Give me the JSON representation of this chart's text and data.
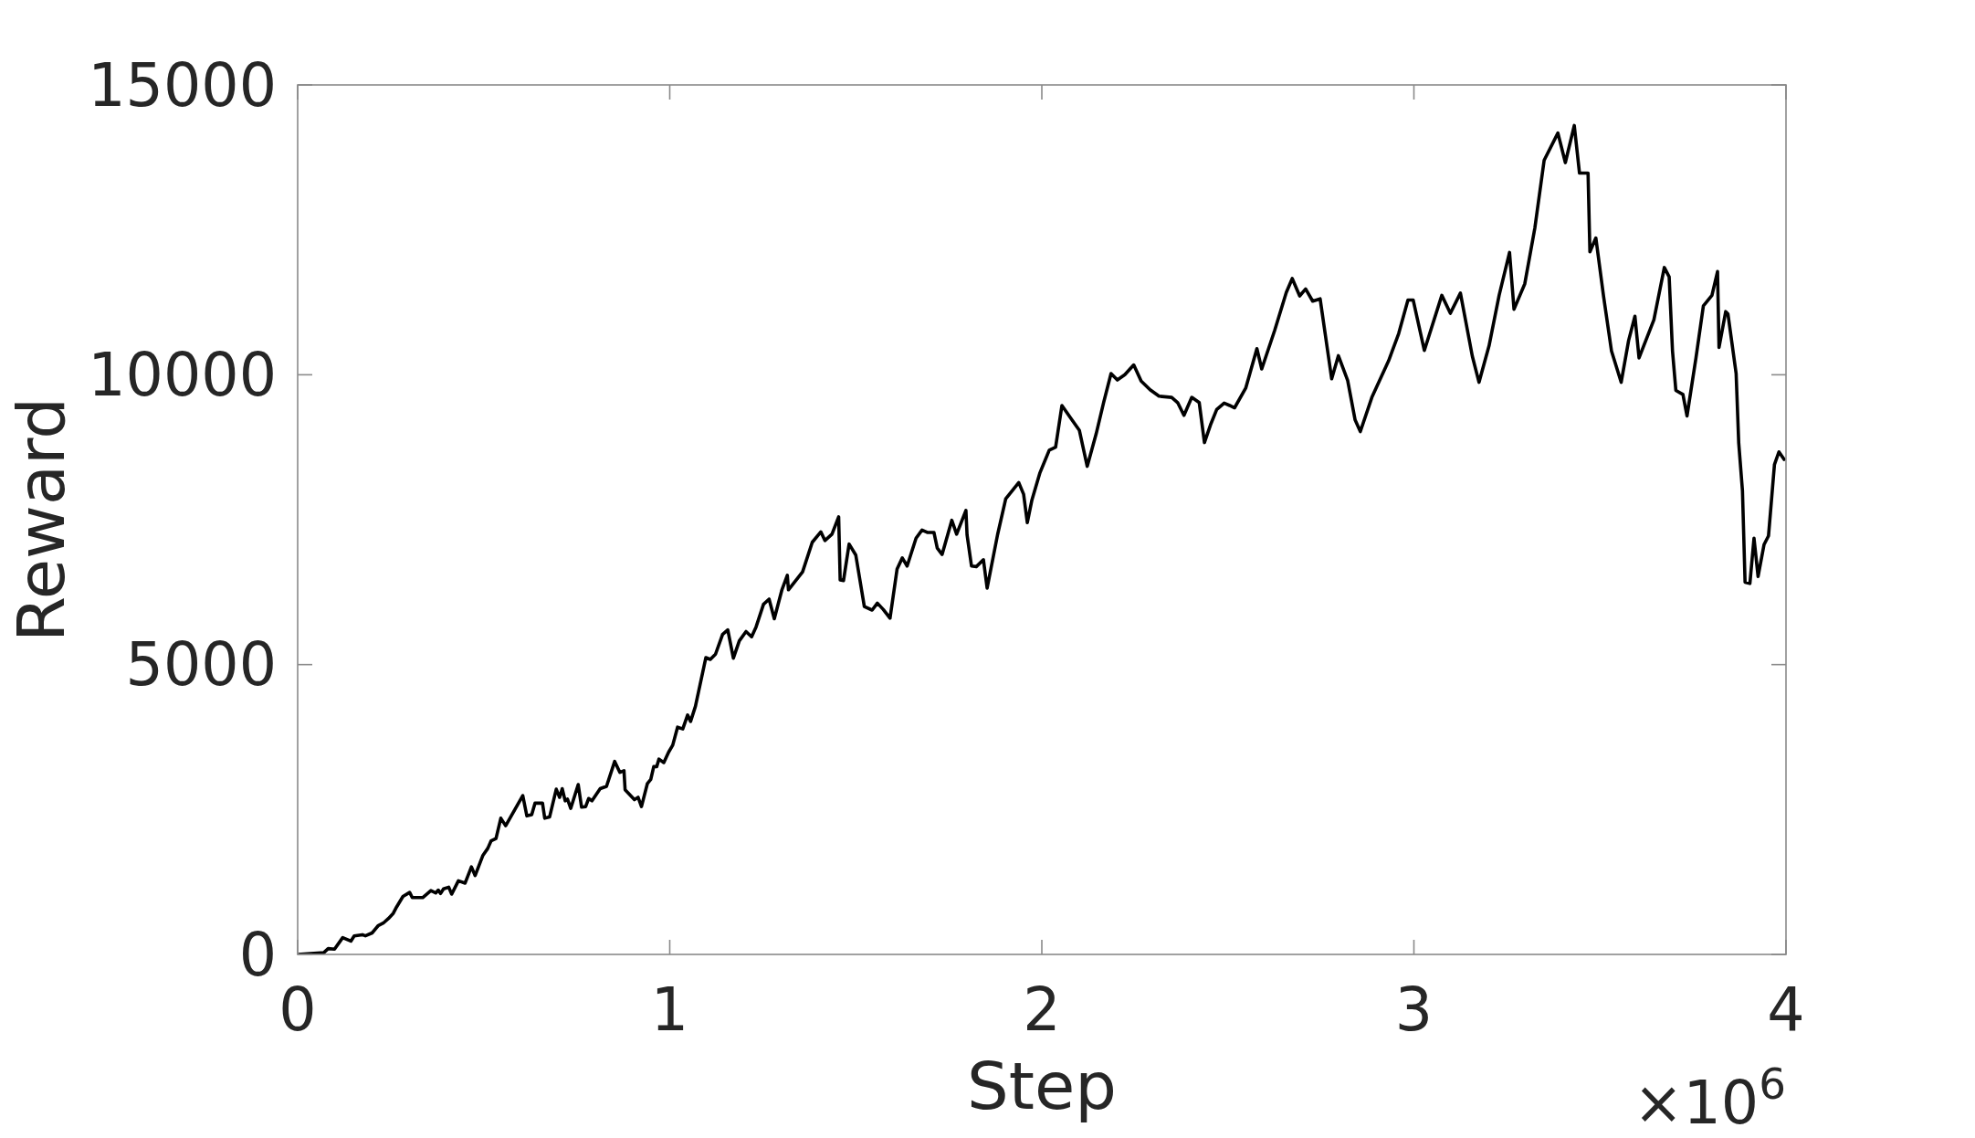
{
  "chart_data": {
    "type": "line",
    "xlabel": "Step",
    "ylabel": "Reward",
    "annotations": [
      "×10$^{6}$"
    ],
    "xlim": [
      0,
      4
    ],
    "ylim": [
      0,
      15000
    ],
    "xticks": [
      0,
      1,
      2,
      3,
      4
    ],
    "yticks": [
      0,
      5000,
      10000,
      15000
    ],
    "x": [
      0,
      0.07,
      0.082,
      0.099,
      0.121,
      0.143,
      0.152,
      0.174,
      0.182,
      0.2,
      0.217,
      0.23,
      0.244,
      0.257,
      0.266,
      0.283,
      0.301,
      0.308,
      0.336,
      0.358,
      0.371,
      0.378,
      0.384,
      0.392,
      0.406,
      0.414,
      0.432,
      0.45,
      0.467,
      0.477,
      0.498,
      0.511,
      0.52,
      0.533,
      0.546,
      0.559,
      0.59,
      0.605,
      0.616,
      0.629,
      0.638,
      0.658,
      0.664,
      0.677,
      0.695,
      0.704,
      0.711,
      0.719,
      0.725,
      0.734,
      0.754,
      0.763,
      0.774,
      0.782,
      0.791,
      0.813,
      0.83,
      0.852,
      0.866,
      0.877,
      0.88,
      0.905,
      0.915,
      0.924,
      0.94,
      0.949,
      0.957,
      0.965,
      0.971,
      0.984,
      0.997,
      1.008,
      1.021,
      1.035,
      1.048,
      1.056,
      1.069,
      1.097,
      1.109,
      1.123,
      1.142,
      1.156,
      1.171,
      1.187,
      1.205,
      1.22,
      1.232,
      1.252,
      1.267,
      1.281,
      1.301,
      1.316,
      1.319,
      1.357,
      1.383,
      1.406,
      1.417,
      1.436,
      1.454,
      1.458,
      1.467,
      1.482,
      1.5,
      1.523,
      1.544,
      1.558,
      1.574,
      1.592,
      1.611,
      1.625,
      1.638,
      1.662,
      1.678,
      1.692,
      1.71,
      1.719,
      1.732,
      1.758,
      1.771,
      1.796,
      1.799,
      1.811,
      1.824,
      1.843,
      1.853,
      1.881,
      1.903,
      1.938,
      1.951,
      1.961,
      1.973,
      1.995,
      2.02,
      2.037,
      2.054,
      2.078,
      2.101,
      2.122,
      2.146,
      2.166,
      2.186,
      2.203,
      2.223,
      2.247,
      2.267,
      2.291,
      2.315,
      2.349,
      2.365,
      2.382,
      2.403,
      2.423,
      2.437,
      2.453,
      2.47,
      2.49,
      2.505,
      2.518,
      2.548,
      2.578,
      2.591,
      2.626,
      2.657,
      2.673,
      2.693,
      2.709,
      2.728,
      2.748,
      2.779,
      2.797,
      2.822,
      2.842,
      2.856,
      2.887,
      2.932,
      2.959,
      2.984,
      2.998,
      3.028,
      3.075,
      3.098,
      3.125,
      3.157,
      3.175,
      3.202,
      3.229,
      3.257,
      3.269,
      3.298,
      3.325,
      3.35,
      3.387,
      3.407,
      3.431,
      3.445,
      3.468,
      3.473,
      3.489,
      3.51,
      3.531,
      3.557,
      3.577,
      3.594,
      3.605,
      3.645,
      3.673,
      3.686,
      3.695,
      3.704,
      3.723,
      3.734,
      3.758,
      3.778,
      3.801,
      3.816,
      3.82,
      3.838,
      3.844,
      3.866,
      3.873,
      3.883,
      3.89,
      3.903,
      3.914,
      3.925,
      3.941,
      3.953,
      3.969,
      3.981,
      3.995
    ],
    "series": [
      {
        "color": "#000000",
        "values": [
          0,
          30,
          100,
          90,
          290,
          230,
          320,
          340,
          320,
          370,
          500,
          540,
          620,
          710,
          820,
          1000,
          1070,
          980,
          980,
          1100,
          1060,
          1110,
          1050,
          1130,
          1160,
          1040,
          1270,
          1230,
          1510,
          1360,
          1710,
          1830,
          1960,
          2000,
          2350,
          2220,
          2570,
          2740,
          2390,
          2410,
          2610,
          2610,
          2350,
          2370,
          2850,
          2710,
          2860,
          2650,
          2680,
          2520,
          2930,
          2540,
          2550,
          2690,
          2650,
          2860,
          2900,
          3330,
          3140,
          3170,
          2840,
          2670,
          2710,
          2550,
          2950,
          3020,
          3240,
          3240,
          3370,
          3310,
          3490,
          3610,
          3920,
          3890,
          4130,
          4020,
          4280,
          5120,
          5090,
          5180,
          5520,
          5600,
          5110,
          5410,
          5570,
          5480,
          5650,
          6040,
          6130,
          5790,
          6280,
          6540,
          6290,
          6600,
          7110,
          7290,
          7140,
          7250,
          7550,
          6460,
          6450,
          7080,
          6890,
          6000,
          5940,
          6060,
          5950,
          5800,
          6650,
          6840,
          6700,
          7180,
          7320,
          7280,
          7280,
          7010,
          6900,
          7490,
          7250,
          7660,
          7240,
          6700,
          6690,
          6810,
          6320,
          7240,
          7860,
          8140,
          7940,
          7450,
          7830,
          8310,
          8700,
          8750,
          9470,
          9250,
          9040,
          8420,
          8980,
          9520,
          10020,
          9910,
          10000,
          10170,
          9890,
          9740,
          9630,
          9610,
          9520,
          9300,
          9610,
          9520,
          8830,
          9130,
          9400,
          9510,
          9470,
          9430,
          9770,
          10450,
          10100,
          10770,
          11420,
          11660,
          11360,
          11480,
          11270,
          11310,
          9930,
          10330,
          9900,
          9220,
          9020,
          9610,
          10240,
          10710,
          11290,
          11290,
          10420,
          11370,
          11060,
          11410,
          10320,
          9870,
          10500,
          11370,
          12110,
          11130,
          11570,
          12530,
          13700,
          14170,
          13660,
          14300,
          13480,
          13480,
          12120,
          12360,
          11340,
          10410,
          9870,
          10590,
          11010,
          10290,
          10950,
          11850,
          11690,
          10410,
          9730,
          9660,
          9290,
          10290,
          11190,
          11370,
          11780,
          10470,
          11090,
          11050,
          10020,
          8820,
          8000,
          6420,
          6400,
          7180,
          6520,
          7070,
          7220,
          8450,
          8670,
          8540
        ]
      }
    ]
  }
}
